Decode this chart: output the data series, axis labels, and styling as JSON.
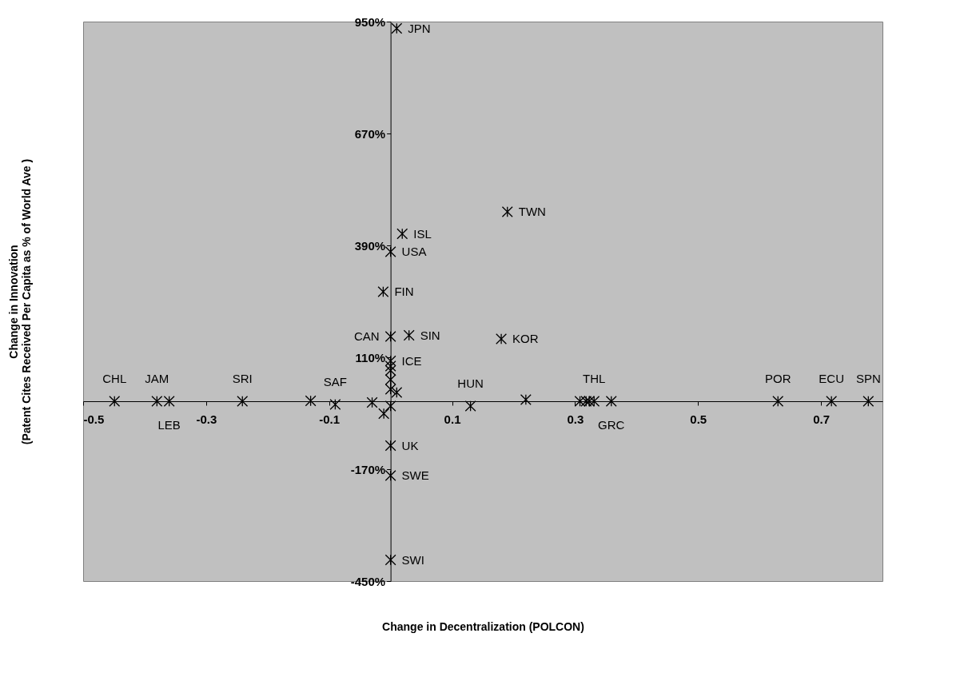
{
  "chart_data": {
    "type": "scatter",
    "xlabel": "Change in Decentralization (POLCON)",
    "ylabel": "Change in Innovation\n(Patent Cites Received Per Capita as % of World Ave )",
    "xlim": [
      -0.5,
      0.8
    ],
    "xticks": [
      -0.5,
      -0.3,
      -0.1,
      0.1,
      0.3,
      0.5,
      0.7
    ],
    "ylim": [
      -450,
      950
    ],
    "yticks": [
      {
        "value": 950,
        "label": "950%"
      },
      {
        "value": 670,
        "label": "670%"
      },
      {
        "value": 390,
        "label": "390%"
      },
      {
        "value": 110,
        "label": "110%"
      },
      {
        "value": -170,
        "label": "-170%"
      },
      {
        "value": -450,
        "label": "-450%"
      }
    ],
    "grid": false,
    "marker": "cross",
    "series": [
      {
        "color": "#000000",
        "x": [
          0.01,
          0.19,
          0.019,
          0,
          -0.012,
          0,
          0.03,
          0.18,
          0,
          0,
          0,
          0,
          0,
          0.01,
          0,
          -0.011,
          -0.03,
          -0.09,
          -0.13,
          0.13,
          -0.449,
          -0.38,
          -0.36,
          -0.241,
          0.22,
          0.308,
          0.318,
          0.323,
          0.331,
          0.359,
          0.63,
          0.717,
          0.777,
          0,
          0,
          0
        ],
        "values": [
          933,
          474,
          419,
          374,
          274,
          162,
          165,
          156,
          101,
          88,
          77,
          54,
          30,
          22,
          -12,
          -31,
          -3,
          -8,
          1,
          -12,
          0,
          0,
          0,
          0,
          4,
          0,
          0,
          0,
          0,
          0,
          0,
          0,
          0,
          -111,
          -186,
          -397
        ]
      }
    ],
    "annotations": [
      {
        "text": "JPN",
        "x": 0.01,
        "y": 933
      },
      {
        "text": "TWN",
        "x": 0.19,
        "y": 474
      },
      {
        "text": "ISL",
        "x": 0.019,
        "y": 419
      },
      {
        "text": "USA",
        "x": 0,
        "y": 374
      },
      {
        "text": "FIN",
        "x": -0.012,
        "y": 274
      },
      {
        "text": "CAN",
        "x": 0,
        "y": 162
      },
      {
        "text": "SIN",
        "x": 0.03,
        "y": 165
      },
      {
        "text": "KOR",
        "x": 0.18,
        "y": 156
      },
      {
        "text": "ICE",
        "x": 0,
        "y": 101
      },
      {
        "text": "HUN",
        "x": 0.13,
        "y": -12
      },
      {
        "text": "CHL",
        "x": -0.449,
        "y": 0
      },
      {
        "text": "JAM",
        "x": -0.38,
        "y": 0
      },
      {
        "text": "LEB",
        "x": -0.36,
        "y": 0
      },
      {
        "text": "SRI",
        "x": -0.241,
        "y": 0
      },
      {
        "text": "SAF",
        "x": -0.09,
        "y": -8
      },
      {
        "text": "THL",
        "x": 0.331,
        "y": 0
      },
      {
        "text": "GRC",
        "x": 0.359,
        "y": 0
      },
      {
        "text": "POR",
        "x": 0.63,
        "y": 0
      },
      {
        "text": "ECU",
        "x": 0.717,
        "y": 0
      },
      {
        "text": "SPN",
        "x": 0.777,
        "y": 0
      },
      {
        "text": "UK",
        "x": 0,
        "y": -111
      },
      {
        "text": "SWE",
        "x": 0,
        "y": -186
      },
      {
        "text": "SWI",
        "x": 0,
        "y": -397
      }
    ]
  }
}
